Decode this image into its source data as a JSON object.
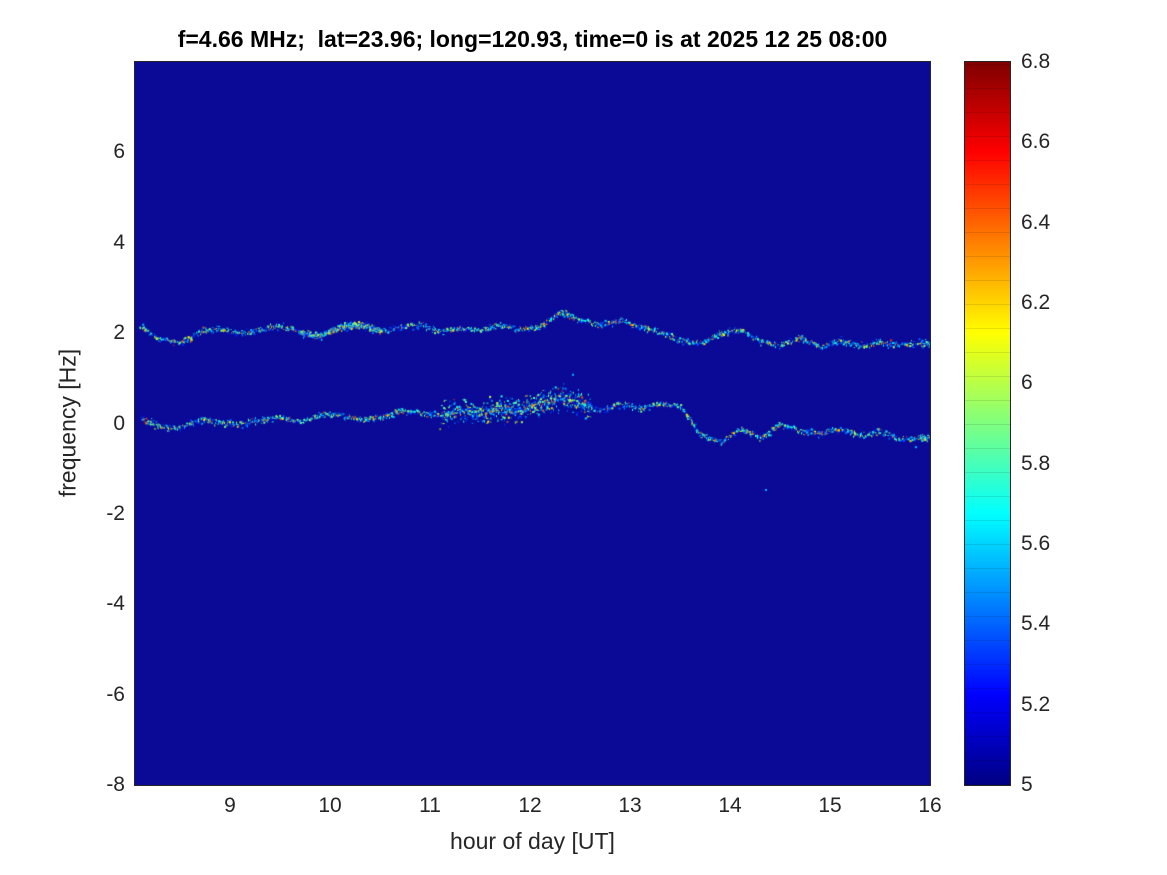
{
  "figure": {
    "background": "#ffffff"
  },
  "chart_data": {
    "type": "heatmap",
    "title": "f=4.66 MHz;  lat=23.96; long=120.93, time=0 is at 2025 12 25 08:00",
    "xlabel": "hour of day [UT]",
    "ylabel": "frequency [Hz]",
    "xlim": [
      8.05,
      16
    ],
    "ylim": [
      -8,
      8
    ],
    "xticks": [
      9,
      10,
      11,
      12,
      13,
      14,
      15,
      16
    ],
    "yticks": [
      6,
      4,
      2,
      0,
      -2,
      -4,
      -6,
      -8
    ],
    "grid": false,
    "legend": false,
    "colormap": "jet",
    "background_value": 5,
    "background_color": "#0a0a96",
    "colorbar": {
      "position": "right",
      "range": [
        5,
        6.8
      ],
      "ticks": [
        6.8,
        6.6,
        6.4,
        6.2,
        6,
        5.8,
        5.6,
        5.4,
        5.2,
        5
      ],
      "stops": [
        "#000083",
        "#0000ff",
        "#00ffff",
        "#ffff00",
        "#ff0000",
        "#7f0000"
      ],
      "stop_positions": [
        0,
        12.5,
        37.5,
        62.5,
        87.5,
        100
      ]
    },
    "series": [
      {
        "name": "upper spectral ridge (~2 Hz)",
        "amplitude_range": [
          5.2,
          6.4
        ],
        "dense_region": [
          9.7,
          10.5
        ],
        "dense_spread": 0.1,
        "x": [
          8.1,
          8.3,
          8.5,
          8.7,
          8.9,
          9.1,
          9.3,
          9.5,
          9.7,
          9.9,
          10.1,
          10.3,
          10.5,
          10.7,
          10.9,
          11.1,
          11.3,
          11.5,
          11.7,
          11.9,
          12.1,
          12.3,
          12.5,
          12.7,
          12.9,
          13.1,
          13.3,
          13.5,
          13.7,
          13.9,
          14.1,
          14.3,
          14.5,
          14.7,
          14.9,
          15.1,
          15.3,
          15.5,
          15.7,
          15.9,
          16.0
        ],
        "y": [
          2.15,
          1.9,
          1.78,
          2.05,
          2.1,
          2.0,
          2.08,
          2.18,
          2.02,
          1.95,
          2.15,
          2.2,
          2.05,
          2.15,
          2.2,
          2.05,
          2.12,
          2.08,
          2.18,
          2.1,
          2.15,
          2.5,
          2.3,
          2.2,
          2.3,
          2.15,
          2.05,
          1.85,
          1.78,
          2.0,
          2.1,
          1.82,
          1.75,
          1.92,
          1.7,
          1.85,
          1.72,
          1.8,
          1.75,
          1.8,
          1.78
        ]
      },
      {
        "name": "lower spectral ridge (~0 Hz)",
        "amplitude_range": [
          5.2,
          6.4
        ],
        "dense_region": [
          11.1,
          12.6
        ],
        "dense_spread": 0.35,
        "x": [
          8.1,
          8.3,
          8.5,
          8.7,
          8.9,
          9.1,
          9.3,
          9.5,
          9.7,
          9.9,
          10.1,
          10.3,
          10.5,
          10.7,
          10.9,
          11.1,
          11.3,
          11.5,
          11.7,
          11.9,
          12.1,
          12.3,
          12.5,
          12.7,
          12.9,
          13.1,
          13.3,
          13.5,
          13.7,
          13.9,
          14.1,
          14.3,
          14.5,
          14.7,
          14.9,
          15.1,
          15.3,
          15.5,
          15.7,
          15.9,
          16.0
        ],
        "y": [
          0.15,
          -0.05,
          -0.1,
          0.1,
          0.05,
          0.0,
          0.1,
          0.15,
          0.05,
          0.2,
          0.2,
          0.1,
          0.15,
          0.3,
          0.25,
          0.2,
          0.3,
          0.25,
          0.35,
          0.3,
          0.45,
          0.6,
          0.45,
          0.3,
          0.45,
          0.35,
          0.45,
          0.4,
          -0.25,
          -0.4,
          -0.1,
          -0.3,
          0.0,
          -0.15,
          -0.2,
          -0.1,
          -0.25,
          -0.15,
          -0.35,
          -0.3,
          -0.3
        ]
      }
    ],
    "stray_points": [
      {
        "x": 14.35,
        "y": -1.45
      },
      {
        "x": 12.42,
        "y": 1.1
      },
      {
        "x": 15.85,
        "y": -0.5
      }
    ]
  }
}
